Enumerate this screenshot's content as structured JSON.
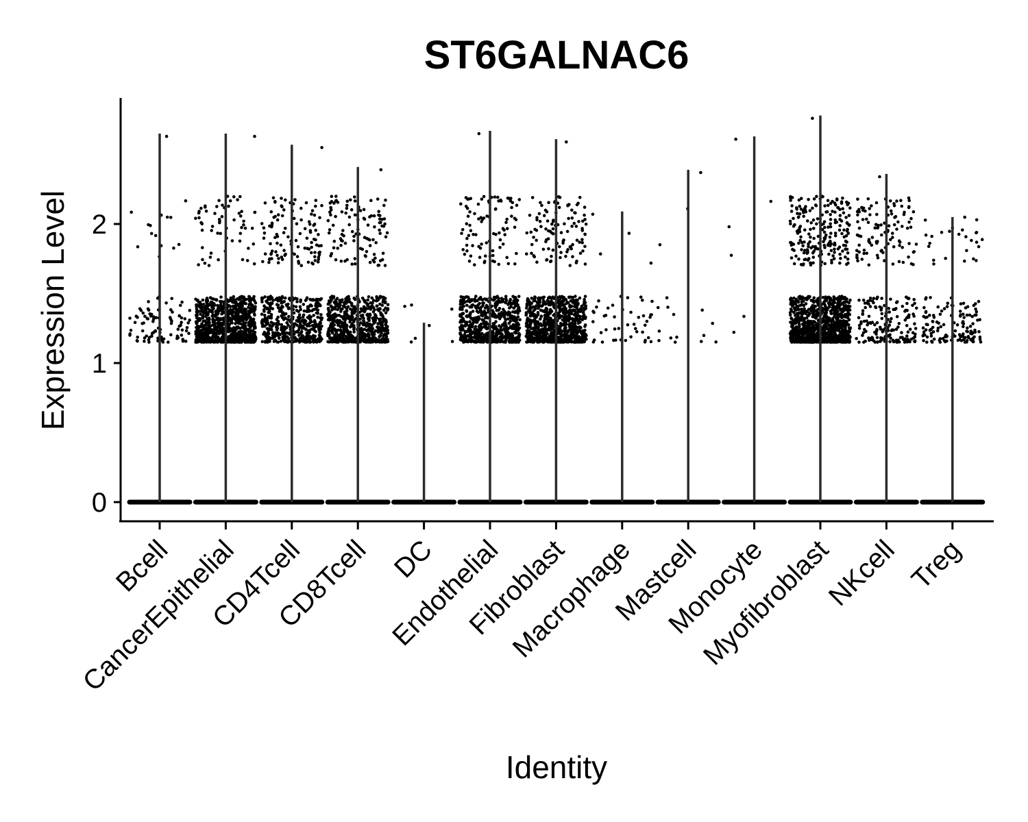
{
  "chart_data": {
    "type": "scatter",
    "subtype": "violin-jitter",
    "title": "ST6GALNAC6",
    "xlabel": "Identity",
    "ylabel": "Expression Level",
    "ylim": [
      -0.13,
      2.88
    ],
    "yticks": [
      0,
      1,
      2
    ],
    "grid": false,
    "legend": "none",
    "point_color": "#000000",
    "categories": [
      "Bcell",
      "CancerEpithelial",
      "CD4Tcell",
      "CD8Tcell",
      "DC",
      "Endothelial",
      "Fibroblast",
      "Macrophage",
      "Mastcell",
      "Monocyte",
      "Myofibroblast",
      "NKcell",
      "Treg"
    ],
    "max_values": [
      2.65,
      2.65,
      2.57,
      2.41,
      1.29,
      2.67,
      2.61,
      2.09,
      2.39,
      2.63,
      2.78,
      2.36,
      2.05
    ],
    "expressing_points_approx": [
      {
        "low_band": 90,
        "high_band": 14
      },
      {
        "low_band": 900,
        "high_band": 60
      },
      {
        "low_band": 450,
        "high_band": 110
      },
      {
        "low_band": 650,
        "high_band": 110
      },
      {
        "low_band": 6,
        "high_band": 0
      },
      {
        "low_band": 650,
        "high_band": 90
      },
      {
        "low_band": 850,
        "high_band": 110
      },
      {
        "low_band": 45,
        "high_band": 3
      },
      {
        "low_band": 14,
        "high_band": 2
      },
      {
        "low_band": 2,
        "high_band": 3
      },
      {
        "low_band": 1000,
        "high_band": 220
      },
      {
        "low_band": 170,
        "high_band": 110
      },
      {
        "low_band": 130,
        "high_band": 25
      }
    ],
    "low_band_range": [
      1.15,
      1.48
    ],
    "high_band_range": [
      1.7,
      2.2
    ],
    "zero_value": 0
  }
}
